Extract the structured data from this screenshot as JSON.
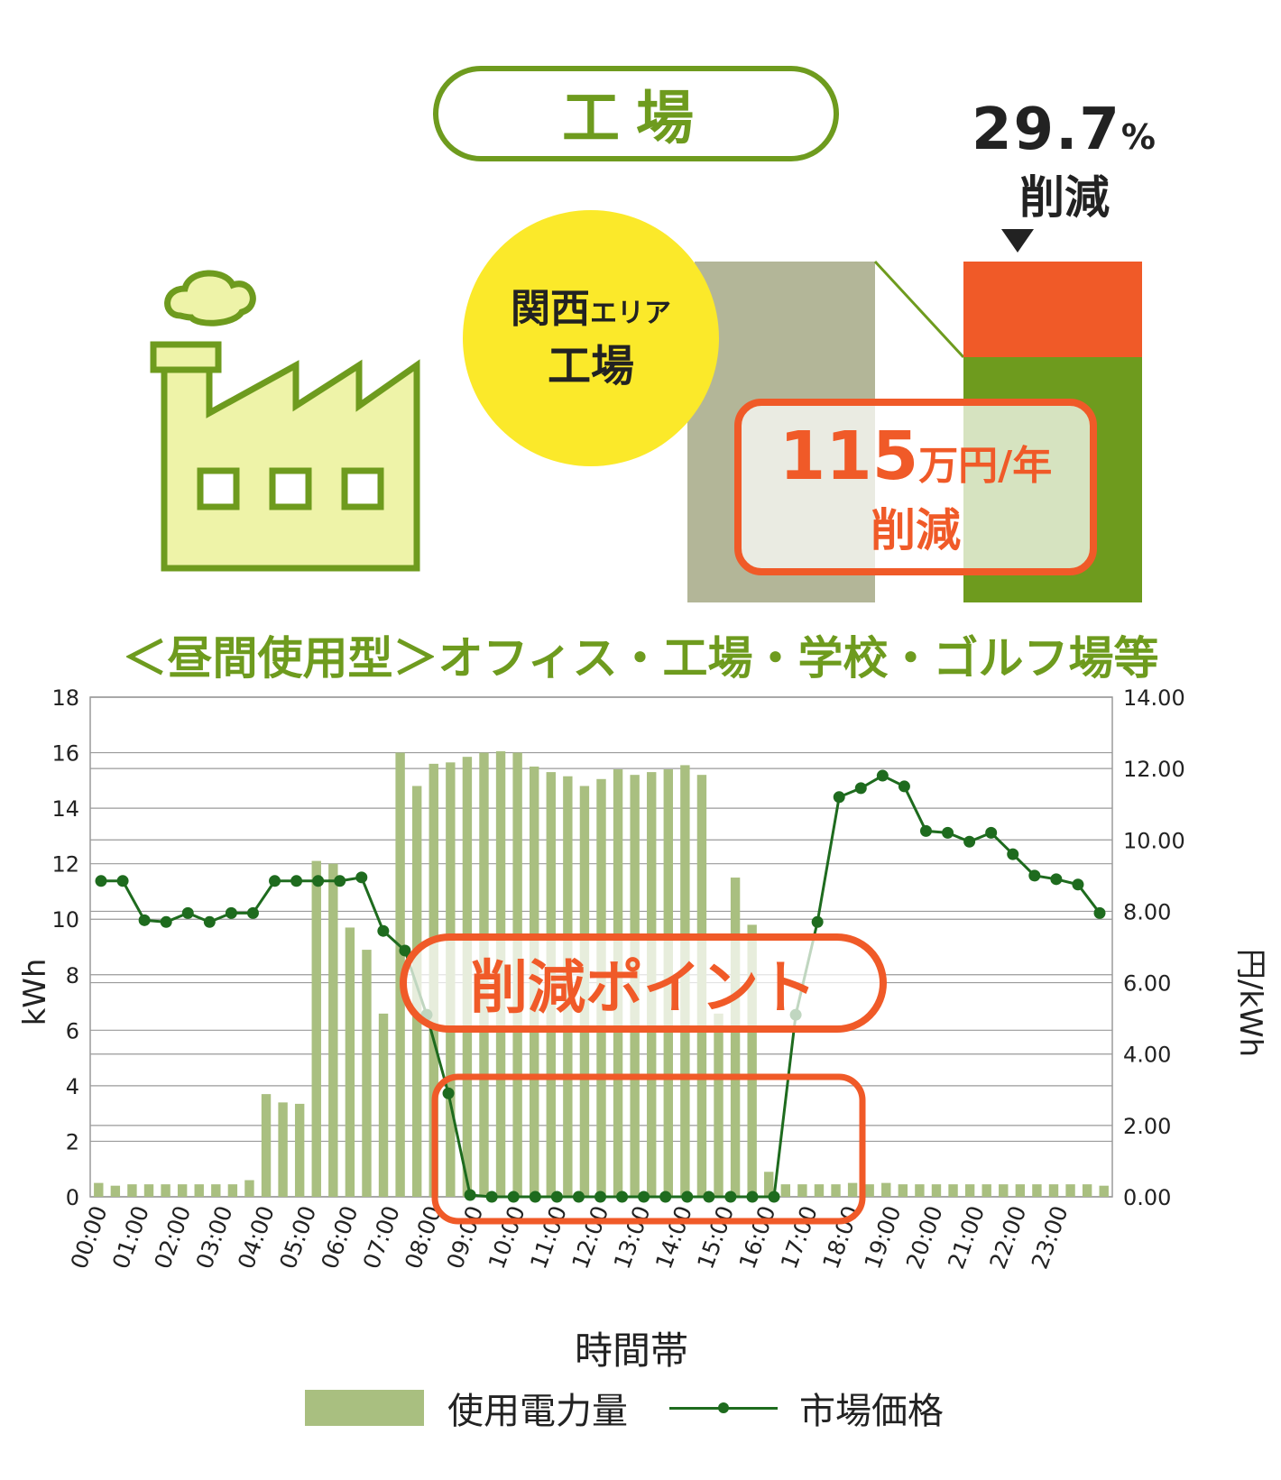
{
  "header": {
    "title": "工場",
    "area_label_line1": "関西",
    "area_label_line1_small": "エリア",
    "area_label_line2": "工場",
    "reduction_percent": "29.7",
    "reduction_percent_unit": "%",
    "reduction_label": "削減",
    "savings_amount": "115",
    "savings_unit": "万円/年",
    "savings_label": "削減"
  },
  "subtitle": "＜昼間使用型＞オフィス・工場・学校・ゴルフ場等",
  "callout": "削減ポイント",
  "colors": {
    "brand_green": "#6e9b1e",
    "bar_green": "#a9bf80",
    "line_green": "#1e6b1e",
    "accent_orange": "#f05a28",
    "before_bar": "#b3b698",
    "after_bottom": "#6e9b1e",
    "after_top": "#f05a28",
    "circle_yellow": "#fbe92a",
    "factory_fill": "#eef3a8"
  },
  "chart_data": {
    "type": "bar",
    "xlabel": "時間帯",
    "ylabel_left": "kWh",
    "ylabel_right": "円/kWh",
    "ylim_left": [
      0,
      18
    ],
    "ylim_right": [
      0,
      14
    ],
    "yticks_left": [
      "0",
      "2",
      "4",
      "6",
      "8",
      "10",
      "12",
      "14",
      "16",
      "18"
    ],
    "yticks_right": [
      "0.00",
      "2.00",
      "4.00",
      "6.00",
      "8.00",
      "10.00",
      "12.00",
      "14.00"
    ],
    "x_tick_labels": [
      "00:00",
      "01:00",
      "02:00",
      "03:00",
      "04:00",
      "05:00",
      "06:00",
      "07:00",
      "08:00",
      "09:00",
      "10:00",
      "11:00",
      "12:00",
      "13:00",
      "14:00",
      "15:00",
      "16:00",
      "17:00",
      "18:00",
      "19:00",
      "20:00",
      "21:00",
      "22:00",
      "23:00"
    ],
    "grid": true,
    "legend_position": "bottom",
    "series": [
      {
        "name": "使用電力量",
        "type": "bar",
        "axis": "left",
        "values": [
          0.5,
          0.4,
          0.45,
          0.45,
          0.45,
          0.45,
          0.45,
          0.45,
          0.45,
          0.6,
          3.7,
          3.4,
          3.35,
          12.1,
          12.0,
          9.7,
          8.9,
          6.6,
          16.0,
          14.8,
          15.6,
          15.65,
          15.85,
          16.0,
          16.05,
          16.0,
          15.5,
          15.3,
          15.15,
          14.8,
          15.05,
          15.4,
          15.2,
          15.3,
          15.4,
          15.55,
          15.2,
          6.6,
          11.5,
          9.8,
          0.9,
          0.45,
          0.45,
          0.45,
          0.45,
          0.5,
          0.45,
          0.5,
          0.45,
          0.45,
          0.45,
          0.45,
          0.45,
          0.45,
          0.45,
          0.45,
          0.45,
          0.45,
          0.45,
          0.45,
          0.4
        ]
      },
      {
        "name": "市場価格",
        "type": "line",
        "axis": "right",
        "values": [
          8.85,
          8.85,
          7.75,
          7.7,
          7.95,
          7.7,
          7.95,
          7.95,
          8.85,
          8.85,
          8.85,
          8.85,
          8.95,
          7.45,
          6.9,
          5.1,
          2.9,
          0.05,
          0.0,
          0.0,
          0.0,
          0.0,
          0.0,
          0.0,
          0.0,
          0.0,
          0.0,
          0.0,
          0.0,
          0.0,
          0.0,
          0.0,
          5.1,
          7.7,
          11.2,
          11.45,
          11.8,
          11.5,
          10.25,
          10.2,
          9.95,
          10.2,
          9.6,
          9.0,
          8.9,
          8.75,
          7.95
        ]
      }
    ]
  }
}
